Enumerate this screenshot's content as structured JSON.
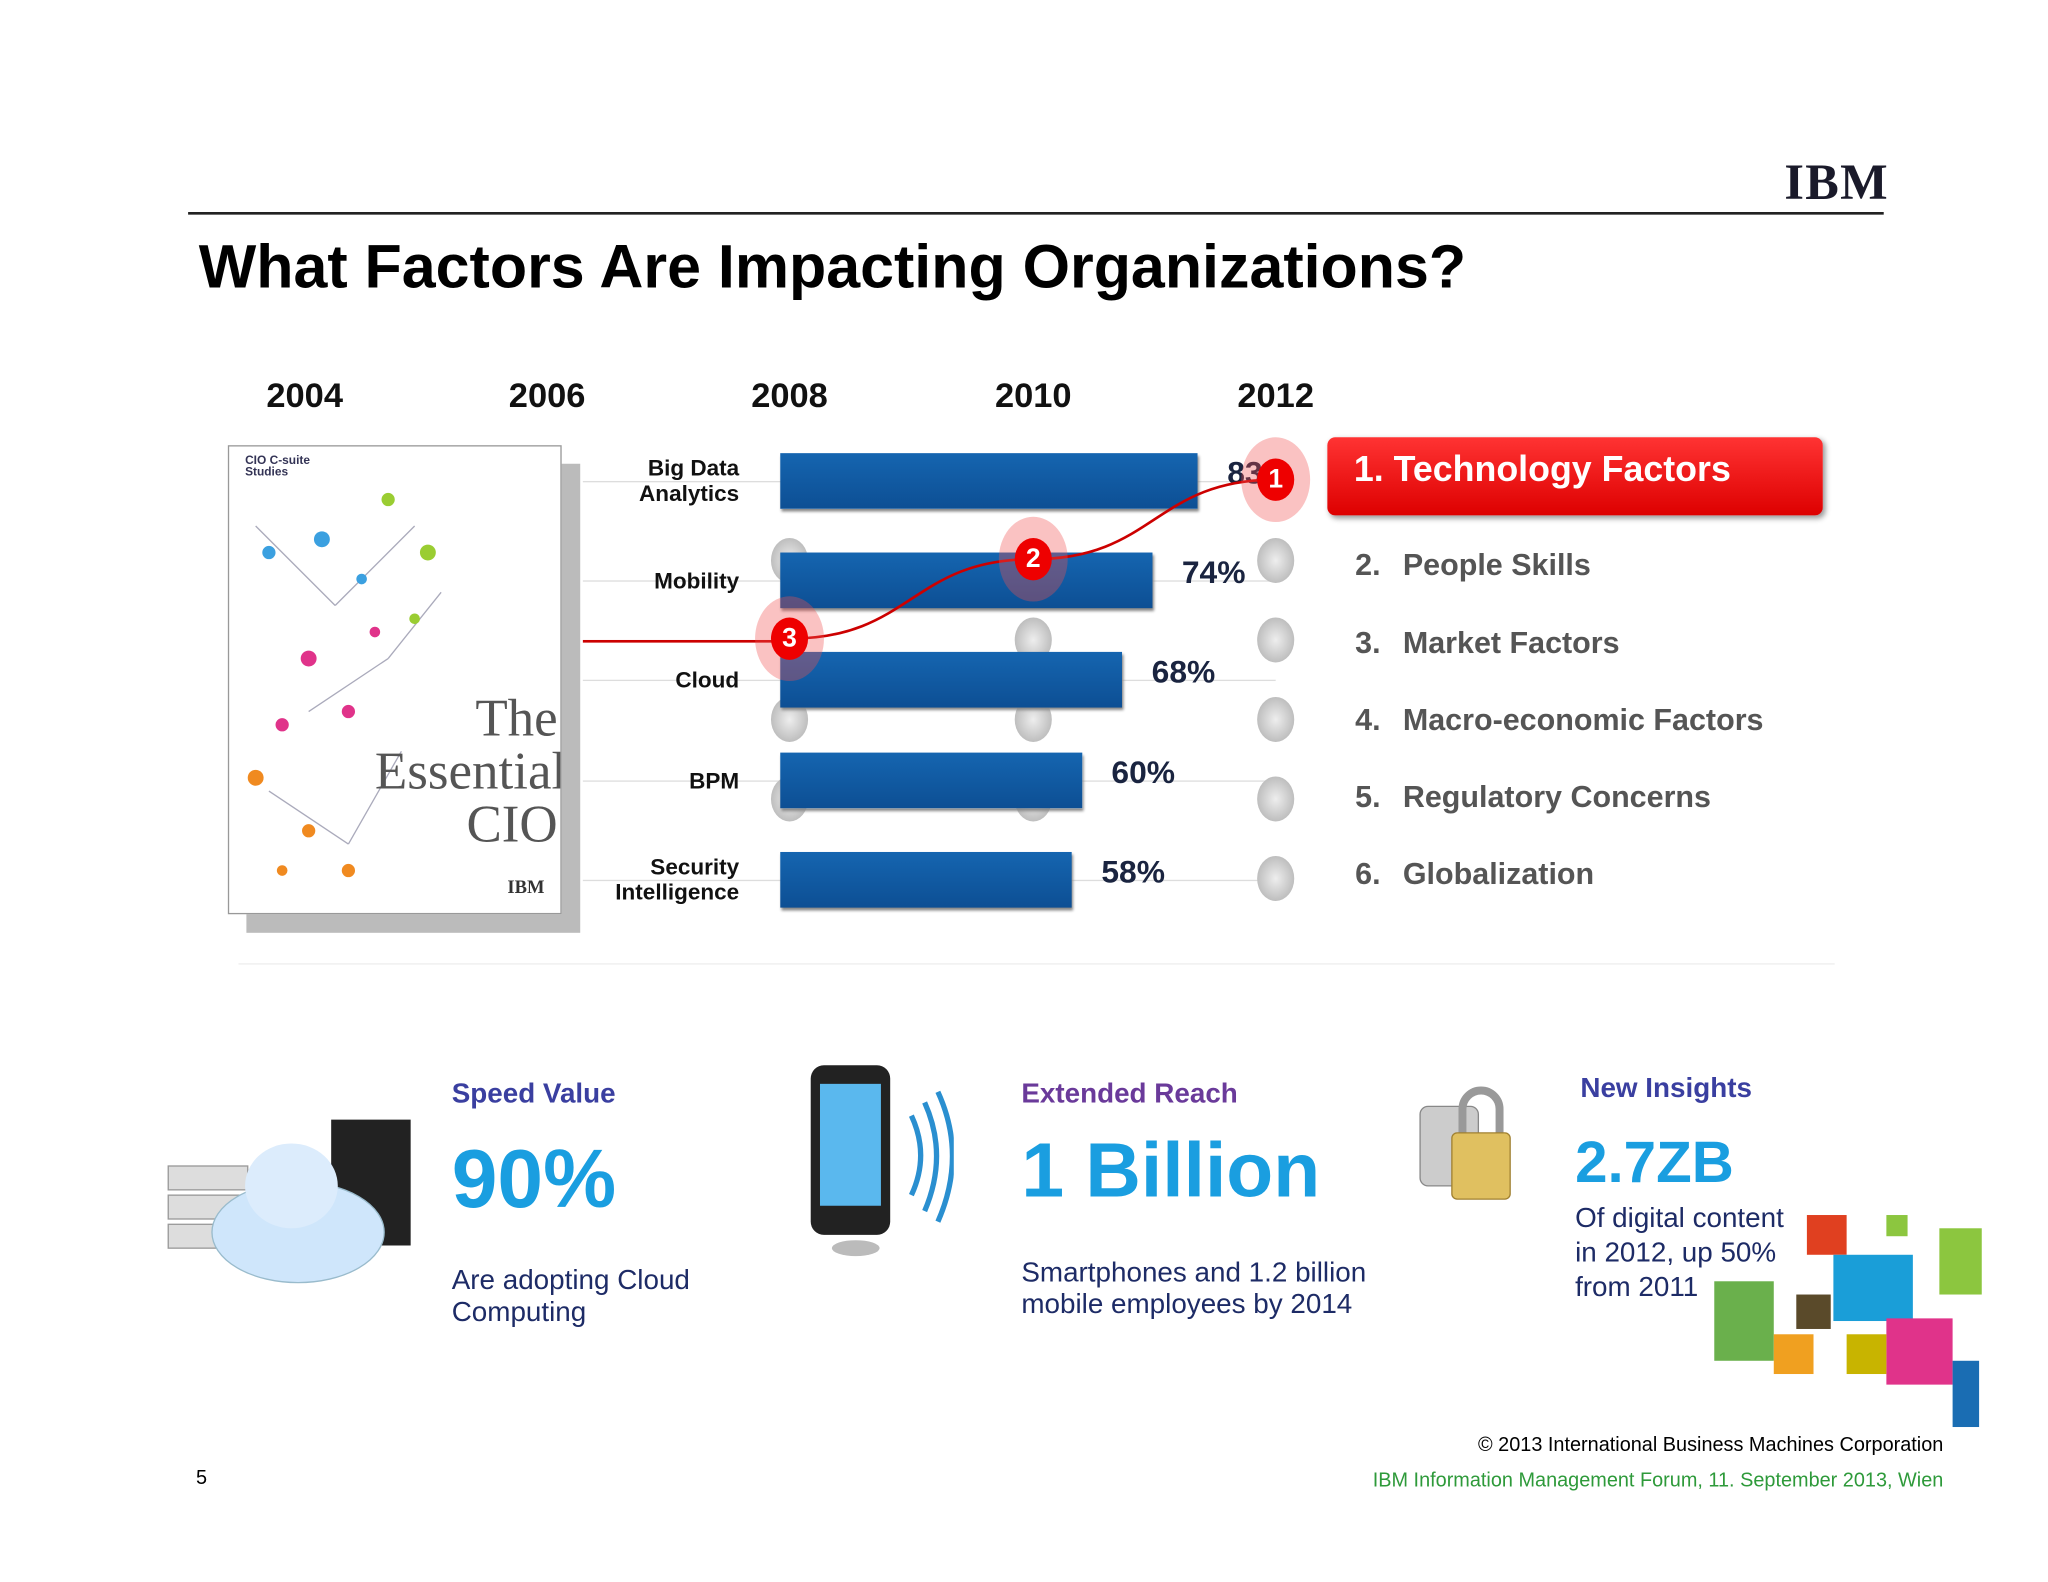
{
  "header": {
    "logo": "IBM",
    "title": "What Factors Are Impacting Organizations?"
  },
  "book": {
    "series": "CIO C-suite Studies",
    "title": "The Essential CIO",
    "logo": "IBM"
  },
  "chart_data": {
    "type": "bar",
    "orientation": "horizontal",
    "timeline": [
      "2004",
      "2006",
      "2008",
      "2010",
      "2012"
    ],
    "categories": [
      "Big Data Analytics",
      "Mobility",
      "Cloud",
      "BPM",
      "Security Intelligence"
    ],
    "values": [
      83,
      74,
      68,
      60,
      58
    ],
    "value_labels": [
      "83%",
      "74%",
      "68%",
      "60%",
      "58%"
    ],
    "color": "#1565b0",
    "xlim": [
      0,
      100
    ],
    "technology_rank": [
      3,
      2,
      1
    ]
  },
  "rankings": [
    {
      "rank": "1.",
      "label": "Technology Factors"
    },
    {
      "rank": "2.",
      "label": "People Skills"
    },
    {
      "rank": "3.",
      "label": "Market Factors"
    },
    {
      "rank": "4.",
      "label": "Macro-economic Factors"
    },
    {
      "rank": "5.",
      "label": "Regulatory Concerns"
    },
    {
      "rank": "6.",
      "label": "Globalization"
    }
  ],
  "stats": [
    {
      "heading": "Speed Value",
      "figure": "90%",
      "text": "Are adopting Cloud Computing"
    },
    {
      "heading": "Extended Reach",
      "figure": "1 Billion",
      "text": "Smartphones and 1.2 billion mobile employees by 2014"
    },
    {
      "heading": "New Insights",
      "figure": "2.7ZB",
      "text": "Of digital content in 2012, up 50% from 2011"
    }
  ],
  "footer": {
    "page": "5",
    "copyright": "© 2013 International Business Machines Corporation",
    "event": "IBM Information Management Forum, 11. September 2013, Wien"
  }
}
